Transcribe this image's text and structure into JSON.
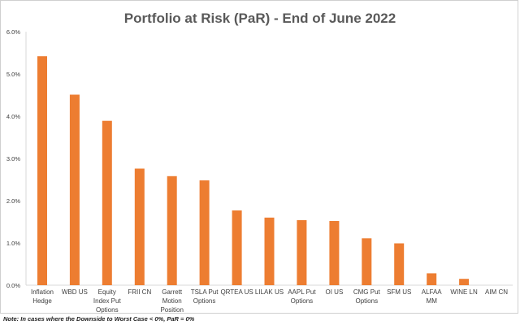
{
  "chart_data": {
    "type": "bar",
    "title": "Portfolio at Risk (PaR) - End of June 2022",
    "categories": [
      [
        "Inflation",
        "Hedge"
      ],
      [
        "WBD US"
      ],
      [
        "Equity",
        "Index Put",
        "Options"
      ],
      [
        "FRII CN"
      ],
      [
        "Garrett",
        "Motion",
        "Position"
      ],
      [
        "TSLA Put",
        "Options"
      ],
      [
        "QRTEA US"
      ],
      [
        "LILAK US"
      ],
      [
        "AAPL Put",
        "Options"
      ],
      [
        "OI US"
      ],
      [
        "CMG Put",
        "Options"
      ],
      [
        "SFM US"
      ],
      [
        "ALFAA",
        "MM"
      ],
      [
        "WINE LN"
      ],
      [
        "AIM CN"
      ]
    ],
    "values": [
      5.42,
      4.51,
      3.89,
      2.76,
      2.58,
      2.48,
      1.77,
      1.6,
      1.54,
      1.52,
      1.11,
      0.99,
      0.28,
      0.15,
      0.0
    ],
    "yticks": [
      "0.0%",
      "1.0%",
      "2.0%",
      "3.0%",
      "4.0%",
      "5.0%",
      "6.0%"
    ],
    "ylim": [
      0,
      6
    ],
    "bar_color": "#ED7D31",
    "grid": false,
    "legend": "none"
  },
  "footnote": "Note: In cases where the Downside to Worst Case < 0%, PaR = 0%"
}
